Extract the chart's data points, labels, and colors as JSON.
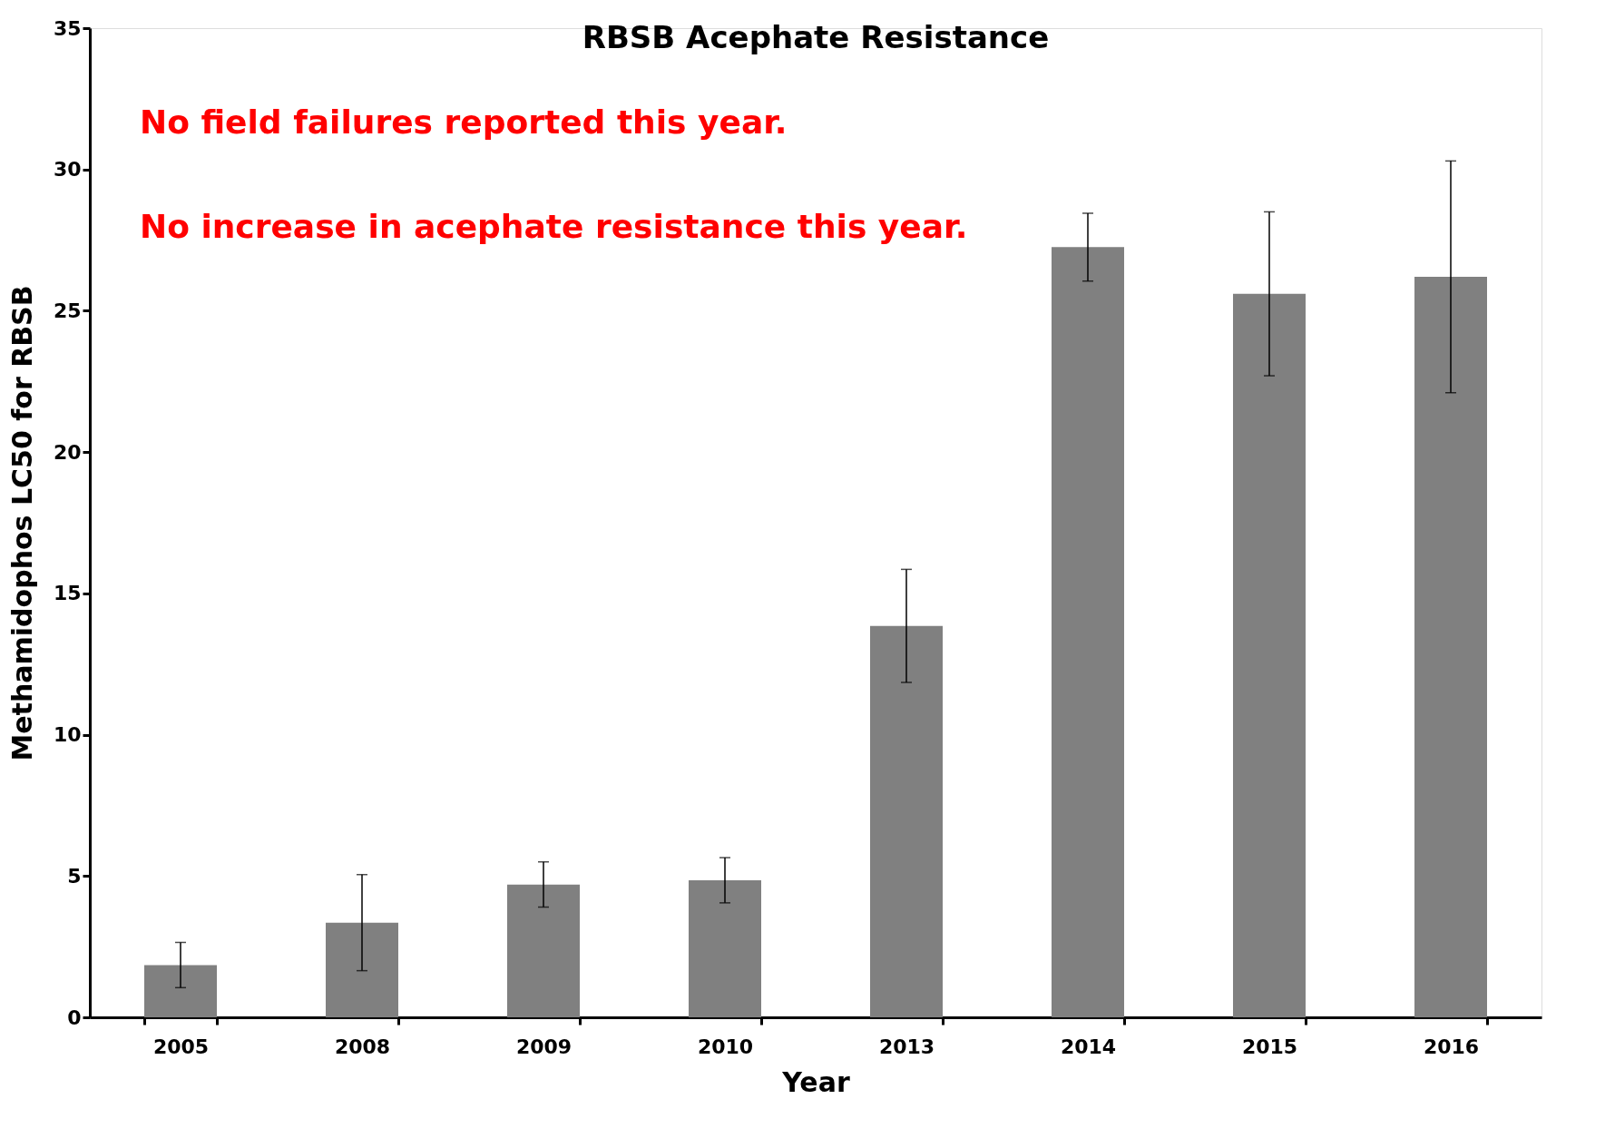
{
  "chart_data": {
    "type": "bar",
    "title": "RBSB Acephate Resistance",
    "xlabel": "Year",
    "ylabel": "Methamidophos LC50 for RBSB",
    "categories": [
      "2005",
      "2008",
      "2009",
      "2010",
      "2013",
      "2014",
      "2015",
      "2016"
    ],
    "values": [
      1.85,
      3.35,
      4.7,
      4.85,
      13.85,
      27.25,
      25.6,
      26.2
    ],
    "errors": [
      0.8,
      1.7,
      0.8,
      0.8,
      2.0,
      1.2,
      2.9,
      4.1
    ],
    "color": "#808080",
    "ylim": [
      0,
      35
    ],
    "yticks": [
      0,
      5,
      10,
      15,
      20,
      25,
      30,
      35
    ],
    "grid": false,
    "annotations": [
      "No field failures reported this year.",
      "No increase in acephate resistance this year."
    ]
  }
}
